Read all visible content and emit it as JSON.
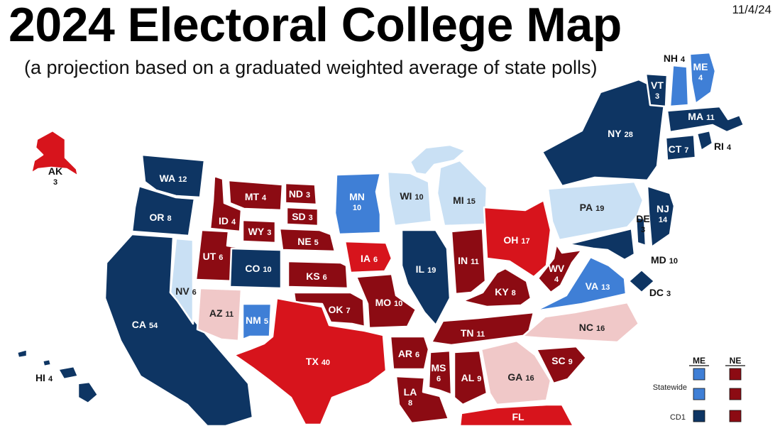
{
  "title": "2024 Electoral College Map",
  "subtitle": "(a projection based on a graduated weighted average of state polls)",
  "date": "11/4/24",
  "colors": {
    "safe_d": "#0e3563",
    "lean_d": "#3f7fd6",
    "tilt_d": "#c9e0f4",
    "safe_r": "#8c0b13",
    "lean_r": "#d7141c",
    "tilt_r": "#f0c8c8"
  },
  "states": [
    {
      "abbr": "AK",
      "ev": "3",
      "rating": "lean_r"
    },
    {
      "abbr": "HI",
      "ev": "4",
      "rating": "safe_d"
    },
    {
      "abbr": "WA",
      "ev": "12",
      "rating": "safe_d"
    },
    {
      "abbr": "OR",
      "ev": "8",
      "rating": "safe_d"
    },
    {
      "abbr": "CA",
      "ev": "54",
      "rating": "safe_d"
    },
    {
      "abbr": "NV",
      "ev": "6",
      "rating": "tilt_d"
    },
    {
      "abbr": "ID",
      "ev": "4",
      "rating": "safe_r"
    },
    {
      "abbr": "MT",
      "ev": "4",
      "rating": "safe_r"
    },
    {
      "abbr": "WY",
      "ev": "3",
      "rating": "safe_r"
    },
    {
      "abbr": "UT",
      "ev": "6",
      "rating": "safe_r"
    },
    {
      "abbr": "AZ",
      "ev": "11",
      "rating": "tilt_r"
    },
    {
      "abbr": "CO",
      "ev": "10",
      "rating": "safe_d"
    },
    {
      "abbr": "NM",
      "ev": "5",
      "rating": "lean_d"
    },
    {
      "abbr": "ND",
      "ev": "3",
      "rating": "safe_r"
    },
    {
      "abbr": "SD",
      "ev": "3",
      "rating": "safe_r"
    },
    {
      "abbr": "NE",
      "ev": "5",
      "rating": "safe_r"
    },
    {
      "abbr": "KS",
      "ev": "6",
      "rating": "safe_r"
    },
    {
      "abbr": "OK",
      "ev": "7",
      "rating": "safe_r"
    },
    {
      "abbr": "TX",
      "ev": "40",
      "rating": "lean_r"
    },
    {
      "abbr": "MN",
      "ev": "10",
      "rating": "lean_d"
    },
    {
      "abbr": "IA",
      "ev": "6",
      "rating": "lean_r"
    },
    {
      "abbr": "MO",
      "ev": "10",
      "rating": "safe_r"
    },
    {
      "abbr": "AR",
      "ev": "6",
      "rating": "safe_r"
    },
    {
      "abbr": "LA",
      "ev": "8",
      "rating": "safe_r"
    },
    {
      "abbr": "WI",
      "ev": "10",
      "rating": "tilt_d"
    },
    {
      "abbr": "IL",
      "ev": "19",
      "rating": "safe_d"
    },
    {
      "abbr": "MI",
      "ev": "15",
      "rating": "tilt_d"
    },
    {
      "abbr": "IN",
      "ev": "11",
      "rating": "safe_r"
    },
    {
      "abbr": "OH",
      "ev": "17",
      "rating": "lean_r"
    },
    {
      "abbr": "KY",
      "ev": "8",
      "rating": "safe_r"
    },
    {
      "abbr": "TN",
      "ev": "11",
      "rating": "safe_r"
    },
    {
      "abbr": "MS",
      "ev": "6",
      "rating": "safe_r"
    },
    {
      "abbr": "AL",
      "ev": "9",
      "rating": "safe_r"
    },
    {
      "abbr": "GA",
      "ev": "16",
      "rating": "tilt_r"
    },
    {
      "abbr": "FL",
      "ev": "",
      "rating": "lean_r"
    },
    {
      "abbr": "SC",
      "ev": "9",
      "rating": "safe_r"
    },
    {
      "abbr": "NC",
      "ev": "16",
      "rating": "tilt_r"
    },
    {
      "abbr": "VA",
      "ev": "13",
      "rating": "lean_d"
    },
    {
      "abbr": "WV",
      "ev": "4",
      "rating": "safe_r"
    },
    {
      "abbr": "PA",
      "ev": "19",
      "rating": "tilt_d"
    },
    {
      "abbr": "NY",
      "ev": "28",
      "rating": "safe_d"
    },
    {
      "abbr": "VT",
      "ev": "3",
      "rating": "safe_d"
    },
    {
      "abbr": "NH",
      "ev": "4",
      "rating": "lean_d"
    },
    {
      "abbr": "ME",
      "ev": "4",
      "rating": "lean_d"
    },
    {
      "abbr": "MA",
      "ev": "11",
      "rating": "safe_d"
    },
    {
      "abbr": "RI",
      "ev": "4",
      "rating": "safe_d"
    },
    {
      "abbr": "CT",
      "ev": "7",
      "rating": "safe_d"
    },
    {
      "abbr": "NJ",
      "ev": "14",
      "rating": "safe_d"
    },
    {
      "abbr": "DE",
      "ev": "3",
      "rating": "safe_d"
    },
    {
      "abbr": "MD",
      "ev": "10",
      "rating": "safe_d"
    },
    {
      "abbr": "DC",
      "ev": "3",
      "rating": "safe_d"
    }
  ],
  "legend": {
    "col_me": "ME",
    "col_ne": "NE",
    "rows": [
      {
        "label": "Statewide",
        "me": "lean_d",
        "ne": "safe_r"
      },
      {
        "label": "",
        "me": "lean_d",
        "ne": "safe_r"
      },
      {
        "label": "CD1",
        "me": "safe_d",
        "ne": "safe_r"
      }
    ]
  }
}
